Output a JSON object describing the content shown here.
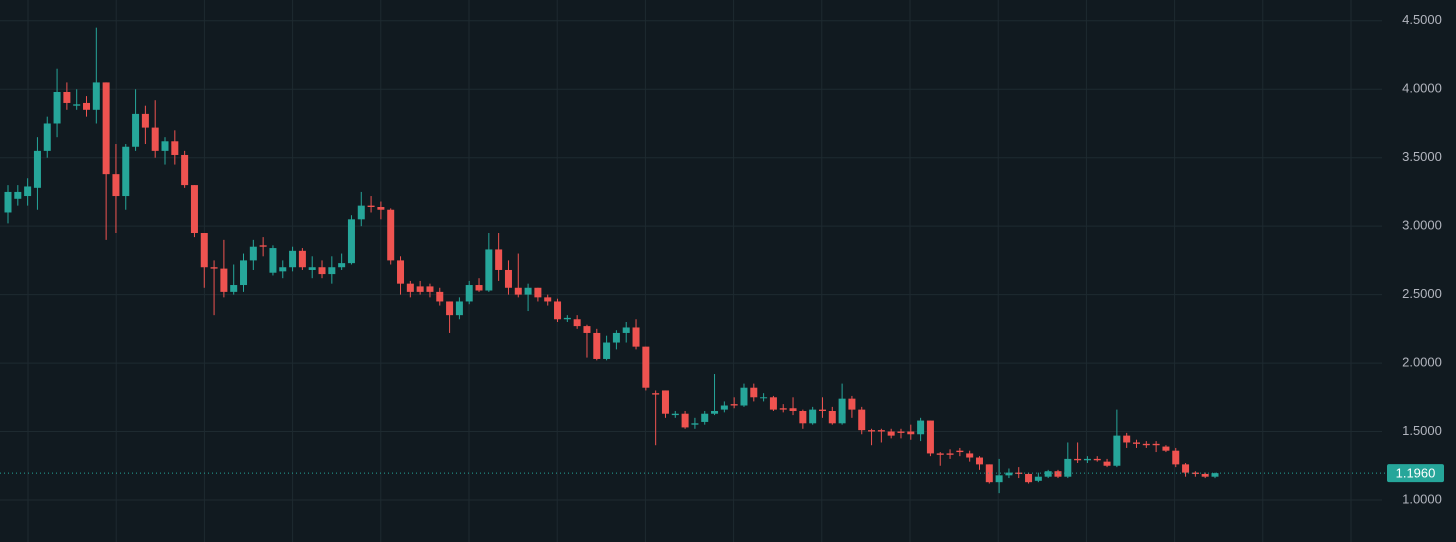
{
  "chart_data": {
    "type": "candlestick",
    "open": [
      3.1,
      3.2,
      3.22,
      3.28,
      3.55,
      3.75,
      3.98,
      3.88,
      3.9,
      3.85,
      4.05,
      3.38,
      3.22,
      3.58,
      3.82,
      3.72,
      3.55,
      3.62,
      3.52,
      3.3,
      2.95,
      2.7,
      2.69,
      2.52,
      2.57,
      2.75,
      2.86,
      2.66,
      2.67,
      2.7,
      2.82,
      2.68,
      2.7,
      2.65,
      2.7,
      2.73,
      3.05,
      3.15,
      3.14,
      3.12,
      2.75,
      2.58,
      2.56,
      2.56,
      2.52,
      2.45,
      2.35,
      2.45,
      2.57,
      2.53,
      2.83,
      2.68,
      2.55,
      2.5,
      2.55,
      2.48,
      2.45,
      2.32,
      2.32,
      2.27,
      2.22,
      2.03,
      2.15,
      2.22,
      2.26,
      2.12,
      1.78,
      1.8,
      1.62,
      1.63,
      1.55,
      1.57,
      1.63,
      1.66,
      1.7,
      1.69,
      1.82,
      1.75,
      1.75,
      1.67,
      1.67,
      1.65,
      1.56,
      1.66,
      1.65,
      1.56,
      1.74,
      1.66,
      1.51,
      1.51,
      1.5,
      1.5,
      1.5,
      1.48,
      1.58,
      1.34,
      1.34,
      1.36,
      1.34,
      1.31,
      1.26,
      1.13,
      1.18,
      1.2,
      1.19,
      1.14,
      1.17,
      1.21,
      1.17,
      1.3,
      1.29,
      1.3,
      1.28,
      1.25,
      1.47,
      1.42,
      1.41,
      1.41,
      1.39,
      1.36,
      1.26,
      1.2,
      1.19,
      1.17
    ],
    "high": [
      3.3,
      3.3,
      3.35,
      3.65,
      3.8,
      4.15,
      4.05,
      4.0,
      3.95,
      4.45,
      4.05,
      3.6,
      3.6,
      4.0,
      3.88,
      3.92,
      3.65,
      3.7,
      3.55,
      3.3,
      2.95,
      2.75,
      2.9,
      2.72,
      2.8,
      2.9,
      2.92,
      2.86,
      2.75,
      2.85,
      2.84,
      2.78,
      2.75,
      2.78,
      2.8,
      3.08,
      3.25,
      3.22,
      3.18,
      3.13,
      2.78,
      2.6,
      2.6,
      2.58,
      2.55,
      2.45,
      2.48,
      2.6,
      2.62,
      2.95,
      2.95,
      2.75,
      2.8,
      2.58,
      2.55,
      2.5,
      2.47,
      2.35,
      2.35,
      2.28,
      2.25,
      2.2,
      2.24,
      2.3,
      2.32,
      2.12,
      1.8,
      1.8,
      1.65,
      1.65,
      1.6,
      1.65,
      1.92,
      1.72,
      1.75,
      1.85,
      1.85,
      1.78,
      1.76,
      1.7,
      1.75,
      1.66,
      1.68,
      1.75,
      1.68,
      1.85,
      1.76,
      1.68,
      1.52,
      1.52,
      1.52,
      1.52,
      1.55,
      1.6,
      1.58,
      1.35,
      1.37,
      1.38,
      1.36,
      1.32,
      1.26,
      1.3,
      1.23,
      1.24,
      1.2,
      1.2,
      1.22,
      1.22,
      1.42,
      1.42,
      1.32,
      1.32,
      1.3,
      1.66,
      1.49,
      1.44,
      1.43,
      1.43,
      1.4,
      1.38,
      1.27,
      1.21,
      1.2,
      1.2
    ],
    "low": [
      3.02,
      3.15,
      3.15,
      3.12,
      3.5,
      3.65,
      3.85,
      3.85,
      3.8,
      3.75,
      2.9,
      2.95,
      3.12,
      3.55,
      3.6,
      3.5,
      3.45,
      3.45,
      3.28,
      2.92,
      2.55,
      2.35,
      2.48,
      2.5,
      2.52,
      2.68,
      2.78,
      2.64,
      2.62,
      2.67,
      2.68,
      2.62,
      2.62,
      2.58,
      2.68,
      2.72,
      3.0,
      3.1,
      3.05,
      2.72,
      2.5,
      2.48,
      2.5,
      2.48,
      2.42,
      2.22,
      2.32,
      2.43,
      2.52,
      2.52,
      2.6,
      2.5,
      2.48,
      2.38,
      2.45,
      2.42,
      2.3,
      2.3,
      2.25,
      2.04,
      2.02,
      2.02,
      2.1,
      2.15,
      2.1,
      1.8,
      1.4,
      1.6,
      1.6,
      1.52,
      1.52,
      1.55,
      1.62,
      1.64,
      1.67,
      1.68,
      1.72,
      1.72,
      1.65,
      1.64,
      1.62,
      1.52,
      1.55,
      1.6,
      1.55,
      1.55,
      1.6,
      1.48,
      1.4,
      1.42,
      1.45,
      1.45,
      1.44,
      1.43,
      1.32,
      1.25,
      1.3,
      1.32,
      1.28,
      1.22,
      1.12,
      1.05,
      1.16,
      1.16,
      1.12,
      1.13,
      1.16,
      1.16,
      1.16,
      1.27,
      1.27,
      1.28,
      1.24,
      1.24,
      1.38,
      1.38,
      1.38,
      1.35,
      1.35,
      1.24,
      1.17,
      1.17,
      1.16,
      1.16
    ],
    "close": [
      3.25,
      3.25,
      3.29,
      3.55,
      3.75,
      3.98,
      3.9,
      3.89,
      3.85,
      4.05,
      3.38,
      3.22,
      3.58,
      3.82,
      3.72,
      3.55,
      3.62,
      3.52,
      3.3,
      2.95,
      2.7,
      2.69,
      2.52,
      2.57,
      2.75,
      2.85,
      2.85,
      2.84,
      2.7,
      2.82,
      2.7,
      2.7,
      2.65,
      2.7,
      2.73,
      3.05,
      3.15,
      3.14,
      3.12,
      2.75,
      2.58,
      2.52,
      2.52,
      2.52,
      2.45,
      2.35,
      2.45,
      2.57,
      2.53,
      2.83,
      2.68,
      2.55,
      2.5,
      2.55,
      2.48,
      2.45,
      2.32,
      2.33,
      2.27,
      2.22,
      2.03,
      2.15,
      2.22,
      2.26,
      2.12,
      1.82,
      1.77,
      1.63,
      1.63,
      1.53,
      1.56,
      1.63,
      1.65,
      1.69,
      1.69,
      1.82,
      1.75,
      1.75,
      1.66,
      1.66,
      1.65,
      1.56,
      1.66,
      1.65,
      1.56,
      1.74,
      1.66,
      1.51,
      1.5,
      1.5,
      1.47,
      1.49,
      1.48,
      1.58,
      1.34,
      1.33,
      1.33,
      1.35,
      1.31,
      1.26,
      1.13,
      1.18,
      1.2,
      1.19,
      1.13,
      1.17,
      1.21,
      1.17,
      1.3,
      1.29,
      1.3,
      1.29,
      1.25,
      1.47,
      1.42,
      1.41,
      1.4,
      1.4,
      1.36,
      1.26,
      1.2,
      1.19,
      1.17,
      1.196
    ],
    "up_color": "#26a69a",
    "down_color": "#ef5350",
    "ylim": [
      0.693,
      4.652
    ],
    "yticks": [
      {
        "value": 1.0,
        "label": "1.0000"
      },
      {
        "value": 1.5,
        "label": "1.5000"
      },
      {
        "value": 2.0,
        "label": "2.0000"
      },
      {
        "value": 2.5,
        "label": "2.5000"
      },
      {
        "value": 3.0,
        "label": "3.0000"
      },
      {
        "value": 3.5,
        "label": "3.5000"
      },
      {
        "value": 4.0,
        "label": "4.0000"
      },
      {
        "value": 4.5,
        "label": "4.5000"
      }
    ],
    "last_price": {
      "value": 1.196,
      "label": "1.1960"
    },
    "grid": true
  }
}
